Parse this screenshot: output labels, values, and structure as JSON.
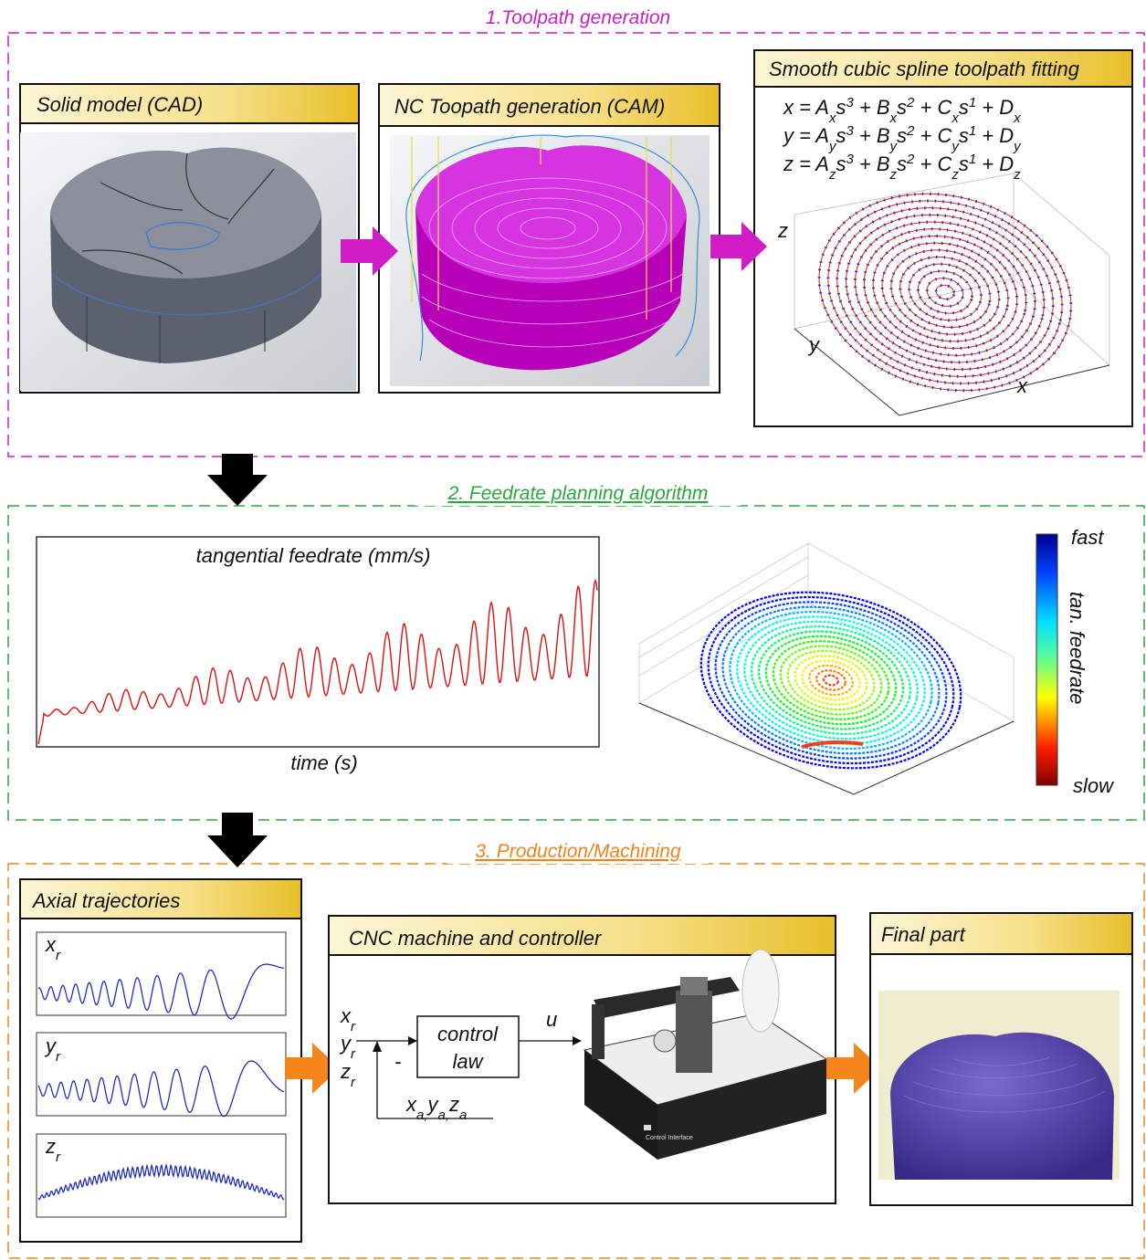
{
  "section1": {
    "title": "1.Toolpath generation",
    "cad_title": "Solid model (CAD)",
    "cam_title": "NC Toopath generation (CAM)",
    "spline_title": "Smooth cubic spline toolpath fitting",
    "equations": [
      [
        {
          "text": "x = A"
        },
        {
          "text": "x",
          "style": "sub"
        },
        {
          "text": "s"
        },
        {
          "text": "3",
          "style": "sup"
        },
        {
          "text": " + B"
        },
        {
          "text": "x",
          "style": "sub"
        },
        {
          "text": "s"
        },
        {
          "text": "2",
          "style": "sup"
        },
        {
          "text": " + C"
        },
        {
          "text": "x",
          "style": "sub"
        },
        {
          "text": "s"
        },
        {
          "text": "1",
          "style": "sup"
        },
        {
          "text": " + D"
        },
        {
          "text": "x",
          "style": "sub"
        }
      ],
      [
        {
          "text": "y = A"
        },
        {
          "text": "y",
          "style": "sub"
        },
        {
          "text": "s"
        },
        {
          "text": "3",
          "style": "sup"
        },
        {
          "text": " + B"
        },
        {
          "text": "y",
          "style": "sub"
        },
        {
          "text": "s"
        },
        {
          "text": "2",
          "style": "sup"
        },
        {
          "text": " + C"
        },
        {
          "text": "y",
          "style": "sub"
        },
        {
          "text": "s"
        },
        {
          "text": "1",
          "style": "sup"
        },
        {
          "text": " + D"
        },
        {
          "text": "y",
          "style": "sub"
        }
      ],
      [
        {
          "text": "z = A"
        },
        {
          "text": "z",
          "style": "sub"
        },
        {
          "text": "s"
        },
        {
          "text": "3",
          "style": "sup"
        },
        {
          "text": " + B"
        },
        {
          "text": "z",
          "style": "sub"
        },
        {
          "text": "s"
        },
        {
          "text": "2",
          "style": "sup"
        },
        {
          "text": " + C"
        },
        {
          "text": "z",
          "style": "sub"
        },
        {
          "text": "s"
        },
        {
          "text": "1",
          "style": "sup"
        },
        {
          "text": " + D"
        },
        {
          "text": "z",
          "style": "sub"
        }
      ]
    ],
    "axis_labels": {
      "x": "x",
      "y": "y",
      "z": "z"
    }
  },
  "section2": {
    "title": "2. Feedrate planning algorithm",
    "plot_title": "tangential feedrate (mm/s)",
    "plot_xlabel": "time (s)",
    "colorbar": {
      "high": "fast",
      "label": "tan. feedrate",
      "low": "slow"
    }
  },
  "section3": {
    "title": "3. Production/Machining",
    "axial_title": "Axial trajectories",
    "axial_labels": [
      [
        {
          "text": "x"
        },
        {
          "text": "r",
          "style": "sub"
        }
      ],
      [
        {
          "text": "y"
        },
        {
          "text": "r",
          "style": "sub"
        }
      ],
      [
        {
          "text": "z"
        },
        {
          "text": "r",
          "style": "sub"
        }
      ]
    ],
    "cnc_title": "CNC machine and controller",
    "controller": {
      "block": [
        "control",
        "law"
      ],
      "output": "u",
      "inputs": [
        [
          {
            "text": "x"
          },
          {
            "text": "r",
            "style": "sub"
          }
        ],
        [
          {
            "text": "y"
          },
          {
            "text": "r",
            "style": "sub"
          }
        ],
        [
          {
            "text": "z"
          },
          {
            "text": "r",
            "style": "sub"
          }
        ]
      ],
      "feedback_sign": "-",
      "feedback": [
        {
          "text": "x"
        },
        {
          "text": "a,",
          "style": "sub"
        },
        {
          "text": "y"
        },
        {
          "text": "a,",
          "style": "sub"
        },
        {
          "text": "z"
        },
        {
          "text": "a",
          "style": "sub"
        }
      ]
    },
    "machine_label": "Control Interface",
    "final_title": "Final part"
  }
}
